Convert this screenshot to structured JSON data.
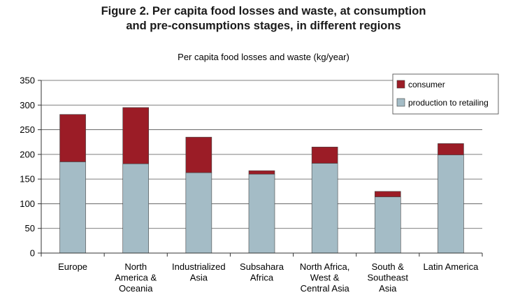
{
  "title_lines": [
    "Figure 2.  Per capita food losses and waste, at consumption",
    "and pre-consumptions stages, in different regions"
  ],
  "chart_data": {
    "type": "bar",
    "stacked": true,
    "title": "Figure 2.  Per capita food losses and waste, at consumption and pre-consumptions stages, in different regions",
    "ylabel": "Per capita food losses and waste (kg/year)",
    "xlabel": "",
    "ylim": [
      0,
      350
    ],
    "yticks": [
      "0",
      "50",
      "100",
      "150",
      "200",
      "250",
      "300",
      "350"
    ],
    "grid": true,
    "legend_position": "top-right",
    "categories": [
      [
        "Europe"
      ],
      [
        "North",
        "America &",
        "Oceania"
      ],
      [
        "Industrialized",
        "Asia"
      ],
      [
        "Subsahara",
        "Africa"
      ],
      [
        "North Africa,",
        "West &",
        "Central Asia"
      ],
      [
        "South &",
        "Southeast",
        "Asia"
      ],
      [
        "Latin America"
      ]
    ],
    "series": [
      {
        "name": "production to retailing",
        "color": "#a4bcc6",
        "values": [
          185,
          181,
          163,
          160,
          182,
          114,
          199
        ]
      },
      {
        "name": "consumer",
        "color": "#9b1c26",
        "values": [
          96,
          114,
          72,
          7,
          33,
          11,
          23
        ]
      }
    ],
    "legend_order": [
      "consumer",
      "production to retailing"
    ]
  }
}
